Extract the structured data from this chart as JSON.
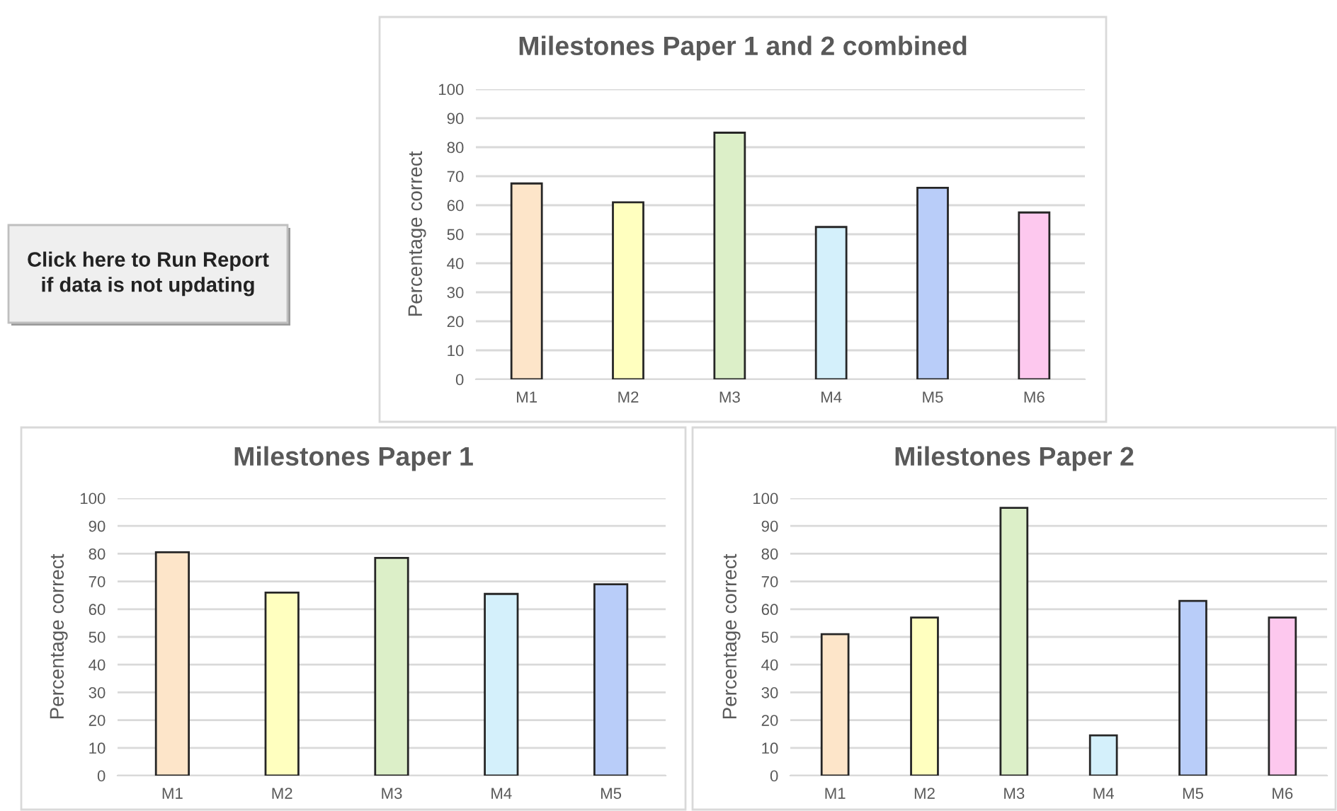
{
  "chart_data": [
    {
      "type": "other",
      "annotations": [
        "Click here to Run Report\nif data is not updating"
      ]
    },
    {
      "type": "bar",
      "title": "Milestones Paper 1 and 2 combined",
      "ylabel": "Percentage correct",
      "categories": [
        "M1",
        "M2",
        "M3",
        "M4",
        "M5",
        "M6"
      ],
      "values": [
        67.5,
        61,
        85,
        52.5,
        66,
        57.5
      ],
      "colors": [
        "#fde5c9",
        "#ffffbf",
        "#dcefc8",
        "#d4f0fb",
        "#b9cdf9",
        "#fdc8ee"
      ],
      "ylim": [
        0,
        100
      ],
      "yticks": [
        0,
        10,
        20,
        30,
        40,
        50,
        60,
        70,
        80,
        90,
        100
      ],
      "grid": "y",
      "legend": false
    },
    {
      "type": "bar",
      "title": "Milestones Paper 1",
      "ylabel": "Percentage correct",
      "categories": [
        "M1",
        "M2",
        "M3",
        "M4",
        "M5"
      ],
      "values": [
        80.5,
        66,
        78.5,
        65.5,
        69
      ],
      "colors": [
        "#fde5c9",
        "#ffffbf",
        "#dcefc8",
        "#d4f0fb",
        "#b9cdf9"
      ],
      "ylim": [
        0,
        100
      ],
      "yticks": [
        0,
        10,
        20,
        30,
        40,
        50,
        60,
        70,
        80,
        90,
        100
      ],
      "grid": "y",
      "legend": false
    },
    {
      "type": "bar",
      "title": "Milestones Paper 2",
      "ylabel": "Percentage correct",
      "categories": [
        "M1",
        "M2",
        "M3",
        "M4",
        "M5",
        "M6"
      ],
      "values": [
        51,
        57,
        96.5,
        14.5,
        63,
        57
      ],
      "colors": [
        "#fde5c9",
        "#ffffbf",
        "#dcefc8",
        "#d4f0fb",
        "#b9cdf9",
        "#fdc8ee"
      ],
      "ylim": [
        0,
        100
      ],
      "yticks": [
        0,
        10,
        20,
        30,
        40,
        50,
        60,
        70,
        80,
        90,
        100
      ],
      "grid": "y",
      "legend": false
    }
  ]
}
